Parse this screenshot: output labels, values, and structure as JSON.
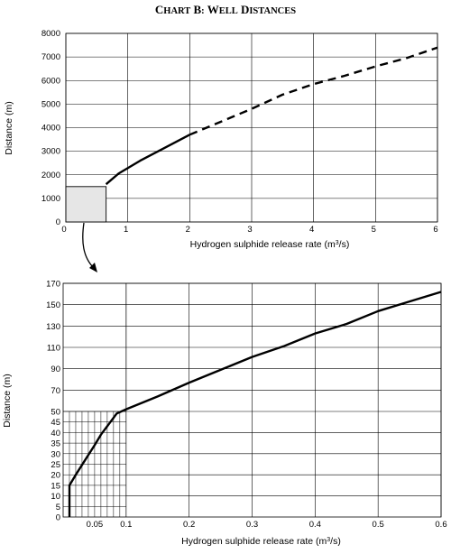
{
  "title": "Chart B: Well Distances",
  "chart_data": [
    {
      "type": "line",
      "panel": "top",
      "xlabel": "Hydrogen sulphide release rate (m³/s)",
      "ylabel": "Distance (m)",
      "xlim": [
        0,
        6
      ],
      "ylim": [
        0,
        8000
      ],
      "xticks": [
        0,
        1,
        2,
        3,
        4,
        5,
        6
      ],
      "yticks": [
        0,
        1000,
        2000,
        3000,
        4000,
        5000,
        6000,
        7000,
        8000
      ],
      "grid": true,
      "inset_box": {
        "x": [
          0,
          0.65
        ],
        "y": [
          0,
          1500
        ]
      },
      "series": [
        {
          "style": "solid",
          "x": [
            0.65,
            0.85,
            1.2,
            1.6,
            2.0
          ],
          "y": [
            1600,
            2050,
            2600,
            3150,
            3700
          ]
        },
        {
          "style": "dashed",
          "x": [
            2.0,
            2.5,
            3.0,
            3.5,
            4.0,
            4.5,
            5.0,
            5.5,
            6.0
          ],
          "y": [
            3700,
            4250,
            4800,
            5400,
            5850,
            6200,
            6600,
            6950,
            7400
          ]
        }
      ]
    },
    {
      "type": "line",
      "panel": "bottom",
      "xlabel": "Hydrogen sulphide release rate (m³/s)",
      "ylabel": "Distance (m)",
      "xlim": [
        0,
        0.6
      ],
      "ylim": [
        0,
        170
      ],
      "xticks": [
        0.05,
        0.1,
        0.2,
        0.3,
        0.4,
        0.5,
        0.6
      ],
      "yticks": [
        0,
        5,
        10,
        15,
        20,
        25,
        30,
        35,
        40,
        45,
        50,
        70,
        90,
        110,
        130,
        150,
        170
      ],
      "grid": true,
      "series": [
        {
          "style": "solid",
          "x": [
            0.01,
            0.01,
            0.02,
            0.035,
            0.05,
            0.06,
            0.07,
            0.075,
            0.085,
            0.1,
            0.15,
            0.2,
            0.25,
            0.3,
            0.35,
            0.4,
            0.45,
            0.5,
            0.55,
            0.6
          ],
          "y": [
            0,
            15,
            20,
            27,
            34,
            39,
            43,
            45,
            49,
            52,
            64,
            77,
            89,
            101,
            111,
            123,
            132,
            144,
            153,
            162
          ]
        }
      ]
    }
  ]
}
